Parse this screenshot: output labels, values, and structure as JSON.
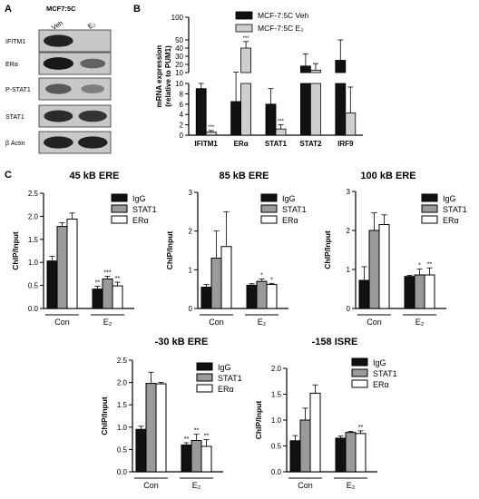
{
  "panel_letters": {
    "a": "A",
    "b": "B",
    "c": "C"
  },
  "blot": {
    "title": "MCF7:5C",
    "lane_labels": [
      "Veh",
      "E₂"
    ],
    "proteins": [
      "IFITM1",
      "ERα",
      "P-STAT1",
      "STAT1",
      "β Actin"
    ],
    "band_intensity": [
      [
        0.9,
        0.0
      ],
      [
        0.95,
        0.55
      ],
      [
        0.6,
        0.4
      ],
      [
        0.85,
        0.8
      ],
      [
        0.9,
        0.9
      ]
    ]
  },
  "colors": {
    "black": "#111111",
    "gray": "#9a9a9a",
    "light_gray": "#cfcfcf",
    "white": "#ffffff",
    "blot_bg": "#c8c8c8"
  },
  "chart_data": [
    {
      "id": "B",
      "type": "bar",
      "ylabel": "mRNA expression\n(relative to PUM1)",
      "categories": [
        "IFITM1",
        "ERα",
        "STAT1",
        "STAT2",
        "IRF9"
      ],
      "y_ticks_lower": [
        0,
        2,
        4,
        6,
        8,
        10
      ],
      "y_ticks_upper": [
        10,
        20,
        30,
        40,
        50,
        100
      ],
      "broken_axis": true,
      "series": [
        {
          "name": "MCF-7:5C Veh",
          "values": [
            9,
            6.5,
            6,
            18,
            25
          ],
          "errors": [
            1,
            4,
            3,
            15,
            25
          ]
        },
        {
          "name": "MCF-7:5C E₂",
          "values": [
            0.6,
            40,
            1.2,
            13,
            4.3
          ],
          "errors": [
            0.3,
            8,
            0.8,
            8,
            5
          ]
        }
      ],
      "annotations": [
        "***",
        "***",
        "***"
      ]
    },
    {
      "id": "C1",
      "type": "bar",
      "title": "45 kB ERE",
      "ylabel": "ChIP/Input",
      "groups": [
        "Con",
        "E₂"
      ],
      "ylim": [
        0,
        2.5
      ],
      "y_ticks": [
        0.0,
        0.5,
        1.0,
        1.5,
        2.0,
        2.5
      ],
      "series": [
        {
          "name": "IgG",
          "values": [
            1.03,
            0.42
          ],
          "errors": [
            0.1,
            0.06
          ]
        },
        {
          "name": "STAT1",
          "values": [
            1.78,
            0.64
          ],
          "errors": [
            0.08,
            0.06
          ]
        },
        {
          "name": "ERα",
          "values": [
            1.94,
            0.49
          ],
          "errors": [
            0.13,
            0.08
          ]
        }
      ],
      "sig": [
        "**",
        "***",
        "**"
      ]
    },
    {
      "id": "C2",
      "type": "bar",
      "title": "85 kB ERE",
      "ylabel": "ChIP/Input",
      "groups": [
        "Con",
        "E₂"
      ],
      "ylim": [
        0,
        3
      ],
      "y_ticks": [
        0,
        1,
        2,
        3
      ],
      "series": [
        {
          "name": "IgG",
          "values": [
            0.55,
            0.6
          ],
          "errors": [
            0.07,
            0.04
          ]
        },
        {
          "name": "STAT1",
          "values": [
            1.3,
            0.7
          ],
          "errors": [
            0.7,
            0.06
          ]
        },
        {
          "name": "ERα",
          "values": [
            1.6,
            0.62
          ],
          "errors": [
            0.9,
            0.03
          ]
        }
      ],
      "sig": [
        "",
        "*",
        "*"
      ]
    },
    {
      "id": "C3",
      "type": "bar",
      "title": "100 kB ERE",
      "ylabel": "ChIP/Input",
      "groups": [
        "Con",
        "E₂"
      ],
      "ylim": [
        0,
        3
      ],
      "y_ticks": [
        0,
        1,
        2,
        3
      ],
      "series": [
        {
          "name": "IgG",
          "values": [
            0.72,
            0.82
          ],
          "errors": [
            0.35,
            0.03
          ]
        },
        {
          "name": "STAT1",
          "values": [
            2.0,
            0.86
          ],
          "errors": [
            0.45,
            0.15
          ]
        },
        {
          "name": "ERα",
          "values": [
            2.15,
            0.86
          ],
          "errors": [
            0.25,
            0.18
          ]
        }
      ],
      "sig": [
        "",
        "*",
        "**"
      ]
    },
    {
      "id": "C4",
      "type": "bar",
      "title": "-30 kB ERE",
      "ylabel": "ChIP/Input",
      "groups": [
        "Con",
        "E₂"
      ],
      "ylim": [
        0,
        2.5
      ],
      "y_ticks": [
        0.0,
        0.5,
        1.0,
        1.5,
        2.0,
        2.5
      ],
      "series": [
        {
          "name": "IgG",
          "values": [
            0.95,
            0.6
          ],
          "errors": [
            0.07,
            0.05
          ]
        },
        {
          "name": "STAT1",
          "values": [
            1.98,
            0.7
          ],
          "errors": [
            0.25,
            0.14
          ]
        },
        {
          "name": "ERα",
          "values": [
            1.97,
            0.57
          ],
          "errors": [
            0.03,
            0.15
          ]
        }
      ],
      "sig": [
        "**",
        "**",
        "**"
      ]
    },
    {
      "id": "C5",
      "type": "bar",
      "title": "-158 ISRE",
      "ylabel": "ChIP/Input",
      "groups": [
        "Con",
        "E₂"
      ],
      "ylim": [
        0,
        2.0
      ],
      "y_ticks": [
        0.0,
        0.5,
        1.0,
        1.5,
        2.0
      ],
      "series": [
        {
          "name": "IgG",
          "values": [
            0.6,
            0.65
          ],
          "errors": [
            0.1,
            0.04
          ]
        },
        {
          "name": "STAT1",
          "values": [
            1.0,
            0.76
          ],
          "errors": [
            0.23,
            0.02
          ]
        },
        {
          "name": "ERα",
          "values": [
            1.52,
            0.74
          ],
          "errors": [
            0.16,
            0.05
          ]
        }
      ],
      "sig": [
        "",
        "",
        "**"
      ]
    }
  ]
}
